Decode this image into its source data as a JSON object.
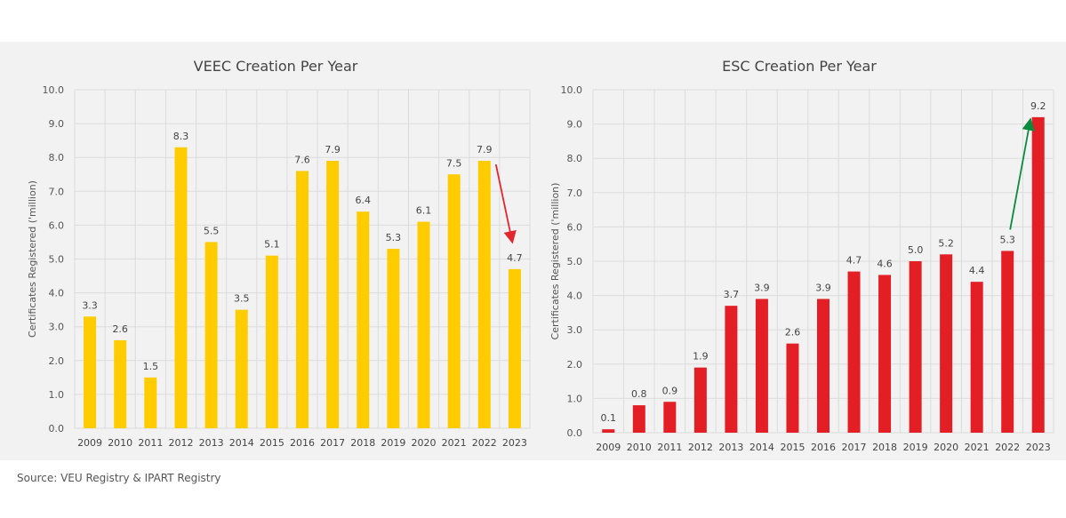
{
  "source": "Source: VEU Registry & IPART Registry",
  "chart_data": [
    {
      "type": "bar",
      "title": "VEEC Creation Per Year",
      "ylabel": "Certificates Registered ('million)",
      "xlabel": "",
      "categories": [
        "2009",
        "2010",
        "2011",
        "2012",
        "2013",
        "2014",
        "2015",
        "2016",
        "2017",
        "2018",
        "2019",
        "2020",
        "2021",
        "2022",
        "2023"
      ],
      "values": [
        3.3,
        2.6,
        1.5,
        8.3,
        5.5,
        3.5,
        5.1,
        7.6,
        7.9,
        6.4,
        5.3,
        6.1,
        7.5,
        7.9,
        4.7
      ],
      "ylim": [
        0,
        10
      ],
      "yticks": [
        "0.0",
        "1.0",
        "2.0",
        "3.0",
        "4.0",
        "5.0",
        "6.0",
        "7.0",
        "8.0",
        "9.0",
        "10.0"
      ],
      "grid": true,
      "bar_color": "#ffcc00",
      "annotation": {
        "type": "arrow",
        "from": "2022",
        "to": "2023",
        "color": "#e3262d"
      }
    },
    {
      "type": "bar",
      "title": "ESC Creation Per Year",
      "ylabel": "Certificates Registered ('million)",
      "xlabel": "",
      "categories": [
        "2009",
        "2010",
        "2011",
        "2012",
        "2013",
        "2014",
        "2015",
        "2016",
        "2017",
        "2018",
        "2019",
        "2020",
        "2021",
        "2022",
        "2023"
      ],
      "values": [
        0.1,
        0.8,
        0.9,
        1.9,
        3.7,
        3.9,
        2.6,
        3.9,
        4.7,
        4.6,
        5.0,
        5.2,
        4.4,
        5.3,
        9.2
      ],
      "ylim": [
        0,
        10
      ],
      "yticks": [
        "0.0",
        "1.0",
        "2.0",
        "3.0",
        "4.0",
        "5.0",
        "6.0",
        "7.0",
        "8.0",
        "9.0",
        "10.0"
      ],
      "grid": true,
      "bar_color": "#e31e24",
      "annotation": {
        "type": "arrow",
        "from": "2022",
        "to": "2023",
        "color": "#0a8a3c"
      }
    }
  ]
}
